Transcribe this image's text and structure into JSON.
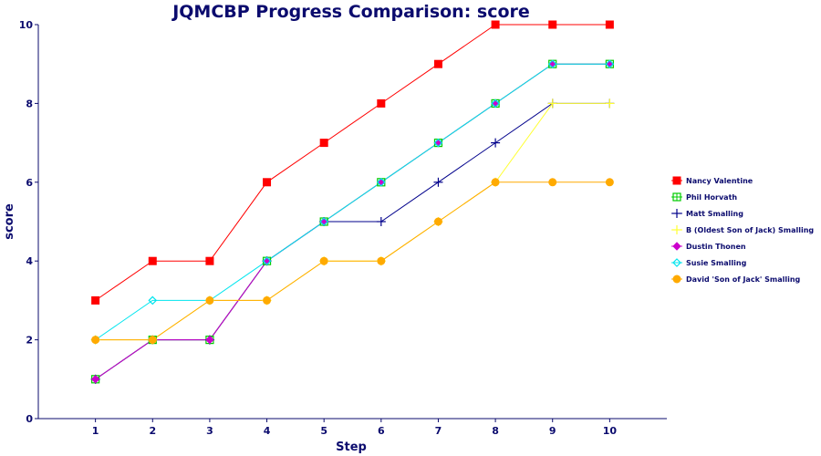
{
  "chart_data": {
    "type": "line",
    "title": "JQMCBP Progress Comparison: score",
    "xlabel": "Step",
    "ylabel": "score",
    "x": [
      1,
      2,
      3,
      4,
      5,
      6,
      7,
      8,
      9,
      10
    ],
    "xlim": [
      0,
      11
    ],
    "ylim": [
      0,
      10
    ],
    "yticks": [
      0,
      2,
      4,
      6,
      8,
      10
    ],
    "grid": false,
    "legend_position": "right",
    "series": [
      {
        "name": "Nancy Valentine",
        "values": [
          3,
          4,
          4,
          6,
          7,
          8,
          9,
          10,
          10,
          10
        ],
        "color": "#ff0000",
        "marker": "square-filled"
      },
      {
        "name": "Phil Horvath",
        "values": [
          1,
          2,
          2,
          4,
          5,
          6,
          7,
          8,
          9,
          9
        ],
        "color": "#00cc00",
        "marker": "square-open"
      },
      {
        "name": "Matt Smalling",
        "values": [
          1,
          2,
          2,
          4,
          5,
          5,
          6,
          7,
          8,
          8
        ],
        "color": "#00008b",
        "marker": "plus"
      },
      {
        "name": "B (Oldest Son of Jack) Smalling",
        "values": [
          2,
          2,
          3,
          3,
          4,
          4,
          5,
          6,
          8,
          8
        ],
        "color": "#ffff33",
        "marker": "plus"
      },
      {
        "name": "Dustin Thonen",
        "values": [
          1,
          2,
          2,
          4,
          5,
          6,
          7,
          8,
          9,
          9
        ],
        "color": "#cc00cc",
        "marker": "diamond-filled"
      },
      {
        "name": "Susie Smalling",
        "values": [
          2,
          3,
          3,
          4,
          5,
          6,
          7,
          8,
          9,
          9
        ],
        "color": "#00e5ee",
        "marker": "diamond-open"
      },
      {
        "name": "David 'Son of Jack' Smalling",
        "values": [
          2,
          2,
          3,
          3,
          4,
          4,
          5,
          6,
          6,
          6
        ],
        "color": "#ffaa00",
        "marker": "circle-filled"
      }
    ]
  }
}
